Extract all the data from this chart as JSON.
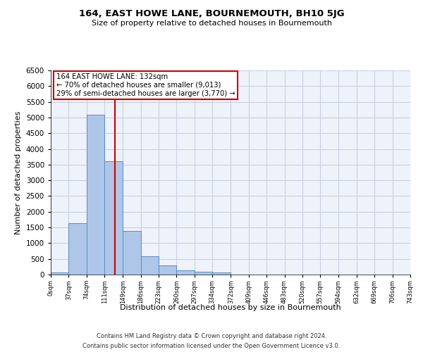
{
  "title": "164, EAST HOWE LANE, BOURNEMOUTH, BH10 5JG",
  "subtitle": "Size of property relative to detached houses in Bournemouth",
  "xlabel": "Distribution of detached houses by size in Bournemouth",
  "ylabel": "Number of detached properties",
  "bar_edges": [
    0,
    37,
    74,
    111,
    149,
    186,
    223,
    260,
    297,
    334,
    372,
    409,
    446,
    483,
    520,
    557,
    594,
    632,
    669,
    706,
    743
  ],
  "bar_heights": [
    70,
    1630,
    5080,
    3600,
    1400,
    580,
    290,
    140,
    90,
    70,
    0,
    0,
    0,
    0,
    0,
    0,
    0,
    0,
    0,
    0
  ],
  "bar_color": "#aec6e8",
  "bar_edge_color": "#5a8fc2",
  "vline_x": 132,
  "vline_color": "#cc0000",
  "annotation_text": "164 EAST HOWE LANE: 132sqm\n← 70% of detached houses are smaller (9,013)\n29% of semi-detached houses are larger (3,770) →",
  "annotation_box_color": "#cc0000",
  "ylim": [
    0,
    6500
  ],
  "yticks": [
    0,
    500,
    1000,
    1500,
    2000,
    2500,
    3000,
    3500,
    4000,
    4500,
    5000,
    5500,
    6000,
    6500
  ],
  "tick_labels": [
    "0sqm",
    "37sqm",
    "74sqm",
    "111sqm",
    "149sqm",
    "186sqm",
    "223sqm",
    "260sqm",
    "297sqm",
    "334sqm",
    "372sqm",
    "409sqm",
    "446sqm",
    "483sqm",
    "520sqm",
    "557sqm",
    "594sqm",
    "632sqm",
    "669sqm",
    "706sqm",
    "743sqm"
  ],
  "footer1": "Contains HM Land Registry data © Crown copyright and database right 2024.",
  "footer2": "Contains public sector information licensed under the Open Government Licence v3.0.",
  "background_color": "#eef2fb",
  "grid_color": "#c8d0e0"
}
